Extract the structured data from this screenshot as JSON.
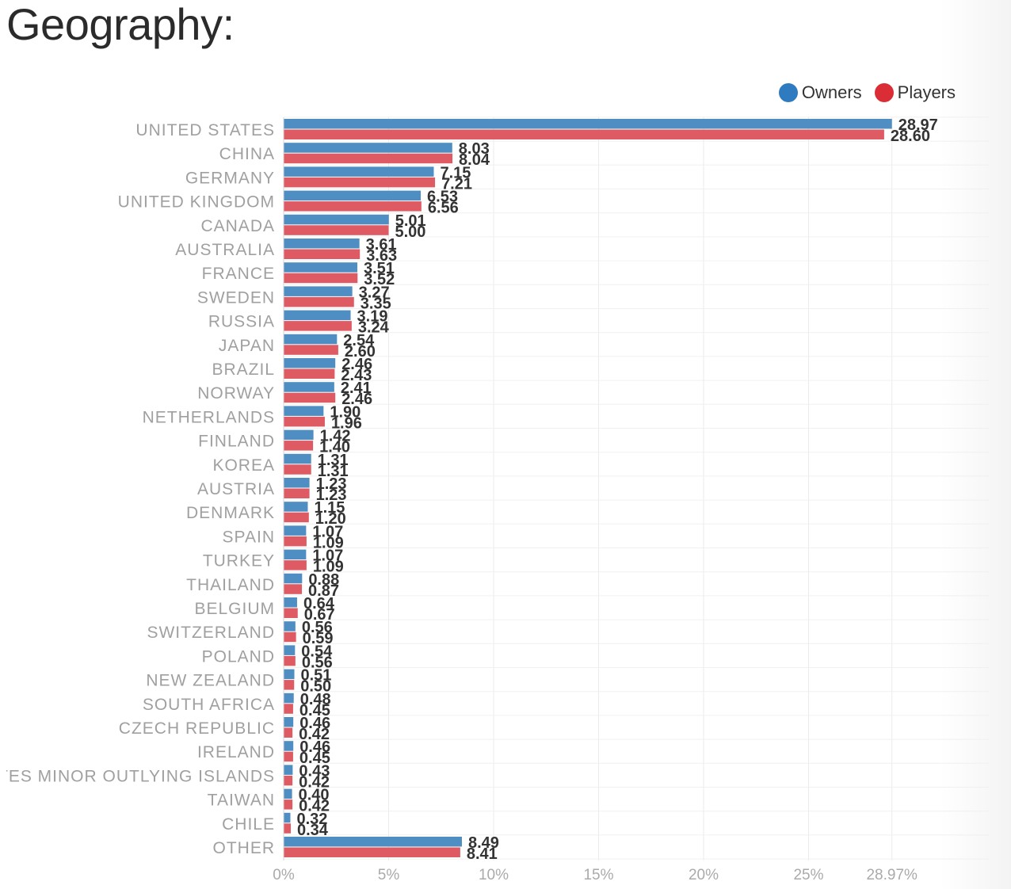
{
  "page_title": "Geography:",
  "colors": {
    "owners": "#4f8ec2",
    "players": "#de5b63",
    "owners_legend": "#2f7bbf",
    "players_legend": "#db2d35"
  },
  "chart_data": {
    "type": "bar",
    "orientation": "horizontal",
    "title": "Geography:",
    "xlabel": "",
    "ylabel": "",
    "xlim": [
      0,
      32
    ],
    "grid": true,
    "legend_position": "top-right",
    "categories": [
      "UNITED STATES",
      "CHINA",
      "GERMANY",
      "UNITED KINGDOM",
      "CANADA",
      "AUSTRALIA",
      "FRANCE",
      "SWEDEN",
      "RUSSIA",
      "JAPAN",
      "BRAZIL",
      "NORWAY",
      "NETHERLANDS",
      "FINLAND",
      "KOREA",
      "AUSTRIA",
      "DENMARK",
      "SPAIN",
      "TURKEY",
      "THAILAND",
      "BELGIUM",
      "SWITZERLAND",
      "POLAND",
      "NEW ZEALAND",
      "SOUTH AFRICA",
      "CZECH REPUBLIC",
      "IRELAND",
      "UNITED STATES MINOR OUTLYING ISLANDS",
      "TAIWAN",
      "CHILE",
      "OTHER"
    ],
    "series": [
      {
        "name": "Owners",
        "values": [
          28.97,
          8.03,
          7.15,
          6.53,
          5.01,
          3.61,
          3.51,
          3.27,
          3.19,
          2.54,
          2.46,
          2.41,
          1.9,
          1.42,
          1.31,
          1.23,
          1.15,
          1.07,
          1.07,
          0.88,
          0.64,
          0.56,
          0.54,
          0.51,
          0.48,
          0.46,
          0.46,
          0.43,
          0.4,
          0.32,
          8.49
        ],
        "labels": [
          "28.97",
          "8.03",
          "7.15",
          "6.53",
          "5.01",
          "3.61",
          "3.51",
          "3.27",
          "3.19",
          "2.54",
          "2.46",
          "2.41",
          "1.90",
          "1.42",
          "1.31",
          "1.23",
          "1.15",
          "1.07",
          "1.07",
          "0.88",
          "0.64",
          "0.56",
          "0.54",
          "0.51",
          "0.48",
          "0.46",
          "0.46",
          "0.43",
          "0.40",
          "0.32",
          "8.49"
        ]
      },
      {
        "name": "Players",
        "values": [
          28.6,
          8.04,
          7.21,
          6.56,
          5.0,
          3.63,
          3.52,
          3.35,
          3.24,
          2.6,
          2.43,
          2.46,
          1.96,
          1.4,
          1.31,
          1.23,
          1.2,
          1.09,
          1.09,
          0.87,
          0.67,
          0.59,
          0.56,
          0.5,
          0.45,
          0.42,
          0.45,
          0.42,
          0.42,
          0.34,
          8.41
        ],
        "labels": [
          "28.60",
          "8.04",
          "7.21",
          "6.56",
          "5.00",
          "3.63",
          "3.52",
          "3.35",
          "3.24",
          "2.60",
          "2.43",
          "2.46",
          "1.96",
          "1.40",
          "1.31",
          "1.23",
          "1.20",
          "1.09",
          "1.09",
          "0.87",
          "0.67",
          "0.59",
          "0.56",
          "0.50",
          "0.45",
          "0.42",
          "0.45",
          "0.42",
          "0.42",
          "0.34",
          "8.41"
        ]
      }
    ],
    "x_ticks": [
      {
        "value": 0,
        "label": "0%"
      },
      {
        "value": 5,
        "label": "5%"
      },
      {
        "value": 10,
        "label": "10%"
      },
      {
        "value": 15,
        "label": "15%"
      },
      {
        "value": 20,
        "label": "20%"
      },
      {
        "value": 25,
        "label": "25%"
      },
      {
        "value": 28.97,
        "label": "28.97%"
      }
    ]
  }
}
